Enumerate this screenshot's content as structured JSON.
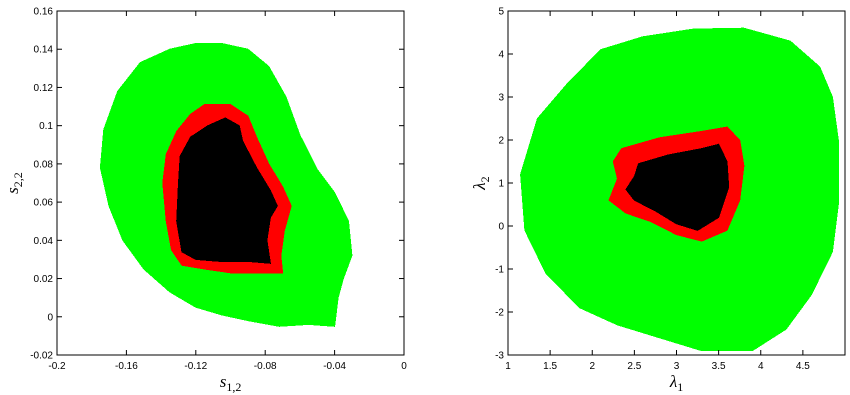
{
  "chart_data": [
    {
      "type": "heatmap",
      "title": "",
      "xlabel": {
        "base": "s",
        "sub": "1,2"
      },
      "ylabel": {
        "base": "s",
        "sub": "2,2"
      },
      "xlim": [
        -0.2,
        0
      ],
      "ylim": [
        -0.02,
        0.16
      ],
      "x_ticks": [
        -0.2,
        -0.16,
        -0.12,
        -0.08,
        -0.04,
        0
      ],
      "x_tick_labels": [
        "-0.2",
        "-0.16",
        "-0.12",
        "-0.08",
        "-0.04",
        "0"
      ],
      "y_ticks": [
        -0.02,
        0,
        0.02,
        0.04,
        0.06,
        0.08,
        0.1,
        0.12,
        0.14,
        0.16
      ],
      "y_tick_labels": [
        "-0.02",
        "0",
        "0.02",
        "0.04",
        "0.06",
        "0.08",
        "0.1",
        "0.12",
        "0.14",
        "0.16"
      ],
      "grid": false,
      "regions": [
        {
          "color": "#00ff00",
          "polygon": [
            [
              -0.135,
              0.14
            ],
            [
              -0.12,
              0.143
            ],
            [
              -0.105,
              0.143
            ],
            [
              -0.09,
              0.14
            ],
            [
              -0.078,
              0.131
            ],
            [
              -0.068,
              0.115
            ],
            [
              -0.06,
              0.095
            ],
            [
              -0.05,
              0.077
            ],
            [
              -0.04,
              0.065
            ],
            [
              -0.032,
              0.05
            ],
            [
              -0.03,
              0.032
            ],
            [
              -0.035,
              0.02
            ],
            [
              -0.038,
              0.01
            ],
            [
              -0.04,
              -0.005
            ],
            [
              -0.055,
              -0.004
            ],
            [
              -0.072,
              -0.005
            ],
            [
              -0.09,
              -0.002
            ],
            [
              -0.105,
              0.001
            ],
            [
              -0.12,
              0.005
            ],
            [
              -0.135,
              0.013
            ],
            [
              -0.15,
              0.025
            ],
            [
              -0.162,
              0.04
            ],
            [
              -0.17,
              0.058
            ],
            [
              -0.175,
              0.078
            ],
            [
              -0.173,
              0.098
            ],
            [
              -0.165,
              0.118
            ],
            [
              -0.152,
              0.133
            ]
          ]
        },
        {
          "color": "#ff0000",
          "polygon": [
            [
              -0.115,
              0.111
            ],
            [
              -0.1,
              0.111
            ],
            [
              -0.09,
              0.105
            ],
            [
              -0.085,
              0.094
            ],
            [
              -0.078,
              0.08
            ],
            [
              -0.07,
              0.068
            ],
            [
              -0.065,
              0.058
            ],
            [
              -0.069,
              0.045
            ],
            [
              -0.071,
              0.032
            ],
            [
              -0.07,
              0.023
            ],
            [
              -0.083,
              0.023
            ],
            [
              -0.1,
              0.023
            ],
            [
              -0.115,
              0.025
            ],
            [
              -0.128,
              0.027
            ],
            [
              -0.134,
              0.035
            ],
            [
              -0.137,
              0.05
            ],
            [
              -0.139,
              0.07
            ],
            [
              -0.137,
              0.085
            ],
            [
              -0.131,
              0.097
            ],
            [
              -0.123,
              0.106
            ]
          ]
        },
        {
          "color": "#000000",
          "polygon": [
            [
              -0.113,
              0.1
            ],
            [
              -0.103,
              0.104
            ],
            [
              -0.095,
              0.1
            ],
            [
              -0.093,
              0.092
            ],
            [
              -0.085,
              0.078
            ],
            [
              -0.077,
              0.066
            ],
            [
              -0.073,
              0.058
            ],
            [
              -0.077,
              0.052
            ],
            [
              -0.079,
              0.04
            ],
            [
              -0.077,
              0.028
            ],
            [
              -0.09,
              0.029
            ],
            [
              -0.106,
              0.029
            ],
            [
              -0.12,
              0.03
            ],
            [
              -0.128,
              0.034
            ],
            [
              -0.131,
              0.05
            ],
            [
              -0.13,
              0.07
            ],
            [
              -0.129,
              0.084
            ],
            [
              -0.123,
              0.094
            ]
          ]
        }
      ]
    },
    {
      "type": "heatmap",
      "title": "",
      "xlabel": {
        "base": "λ",
        "sub": "1"
      },
      "ylabel": {
        "base": "λ",
        "sub": "2"
      },
      "xlim": [
        1,
        5
      ],
      "ylim": [
        -3,
        5
      ],
      "x_ticks": [
        1,
        1.5,
        2,
        2.5,
        3,
        3.5,
        4,
        4.5
      ],
      "x_tick_labels": [
        "1",
        "1.5",
        "2",
        "2.5",
        "3",
        "3.5",
        "4",
        "4.5"
      ],
      "y_ticks": [
        -3,
        -2,
        -1,
        0,
        1,
        2,
        3,
        4,
        5
      ],
      "y_tick_labels": [
        "-3",
        "-2",
        "-1",
        "0",
        "1",
        "2",
        "3",
        "4",
        "5"
      ],
      "grid": false,
      "regions": [
        {
          "color": "#00ff00",
          "polygon": [
            [
              1.7,
              3.3
            ],
            [
              2.1,
              4.1
            ],
            [
              2.6,
              4.4
            ],
            [
              3.2,
              4.58
            ],
            [
              3.8,
              4.6
            ],
            [
              4.35,
              4.3
            ],
            [
              4.7,
              3.7
            ],
            [
              4.85,
              3.0
            ],
            [
              4.92,
              2.0
            ],
            [
              4.92,
              0.5
            ],
            [
              4.85,
              -0.6
            ],
            [
              4.6,
              -1.6
            ],
            [
              4.3,
              -2.4
            ],
            [
              3.9,
              -2.9
            ],
            [
              3.3,
              -2.9
            ],
            [
              2.8,
              -2.6
            ],
            [
              2.3,
              -2.3
            ],
            [
              1.85,
              -1.9
            ],
            [
              1.45,
              -1.1
            ],
            [
              1.2,
              -0.1
            ],
            [
              1.15,
              1.2
            ],
            [
              1.35,
              2.5
            ]
          ]
        },
        {
          "color": "#ff0000",
          "polygon": [
            [
              2.35,
              1.8
            ],
            [
              2.8,
              2.05
            ],
            [
              3.3,
              2.2
            ],
            [
              3.6,
              2.3
            ],
            [
              3.75,
              2.0
            ],
            [
              3.8,
              1.4
            ],
            [
              3.75,
              0.6
            ],
            [
              3.6,
              -0.1
            ],
            [
              3.3,
              -0.35
            ],
            [
              3.0,
              -0.2
            ],
            [
              2.7,
              0.1
            ],
            [
              2.4,
              0.3
            ],
            [
              2.2,
              0.6
            ],
            [
              2.3,
              1.1
            ],
            [
              2.25,
              1.5
            ]
          ]
        },
        {
          "color": "#000000",
          "polygon": [
            [
              2.55,
              1.45
            ],
            [
              2.9,
              1.65
            ],
            [
              3.3,
              1.8
            ],
            [
              3.5,
              1.9
            ],
            [
              3.6,
              1.5
            ],
            [
              3.62,
              0.9
            ],
            [
              3.5,
              0.2
            ],
            [
              3.25,
              -0.1
            ],
            [
              3.0,
              0.05
            ],
            [
              2.75,
              0.35
            ],
            [
              2.5,
              0.6
            ],
            [
              2.4,
              0.85
            ],
            [
              2.5,
              1.15
            ]
          ]
        }
      ]
    }
  ]
}
